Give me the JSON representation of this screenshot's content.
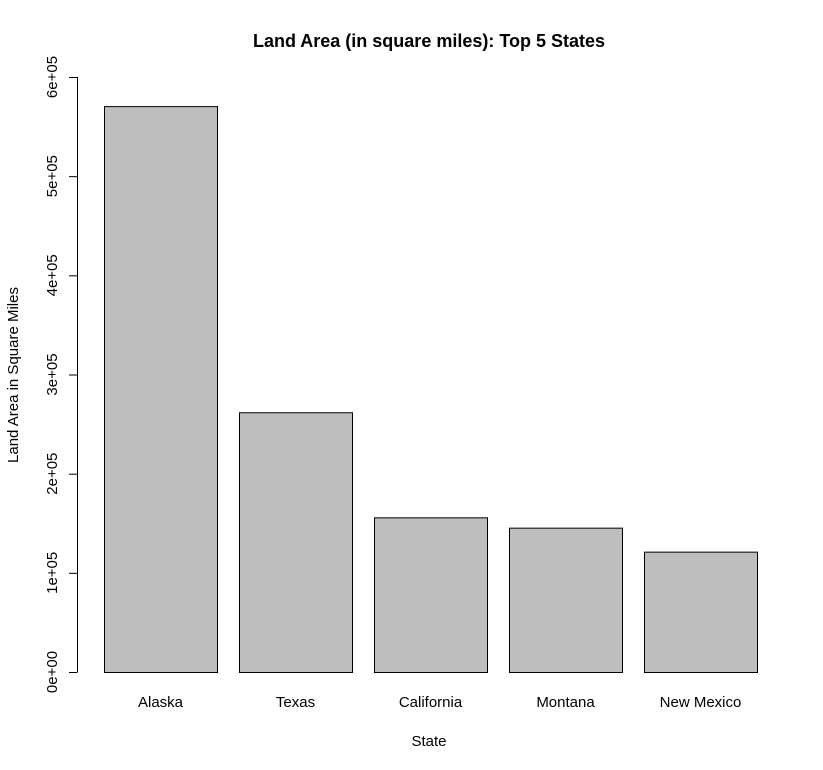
{
  "chart_data": {
    "type": "bar",
    "title": "Land Area (in square miles): Top 5 States",
    "xlabel": "State",
    "ylabel": "Land Area in Square Miles",
    "categories": [
      "Alaska",
      "Texas",
      "California",
      "Montana",
      "New Mexico"
    ],
    "values": [
      570641,
      261914,
      155973,
      145556,
      121365
    ],
    "ylim": [
      0,
      600000
    ],
    "yticks": [
      0,
      100000,
      200000,
      300000,
      400000,
      500000,
      600000
    ],
    "ytick_labels": [
      "0e+00",
      "1e+05",
      "2e+05",
      "3e+05",
      "4e+05",
      "5e+05",
      "6e+05"
    ],
    "bar_color": "#bebebe",
    "grid": false,
    "legend": "none"
  }
}
